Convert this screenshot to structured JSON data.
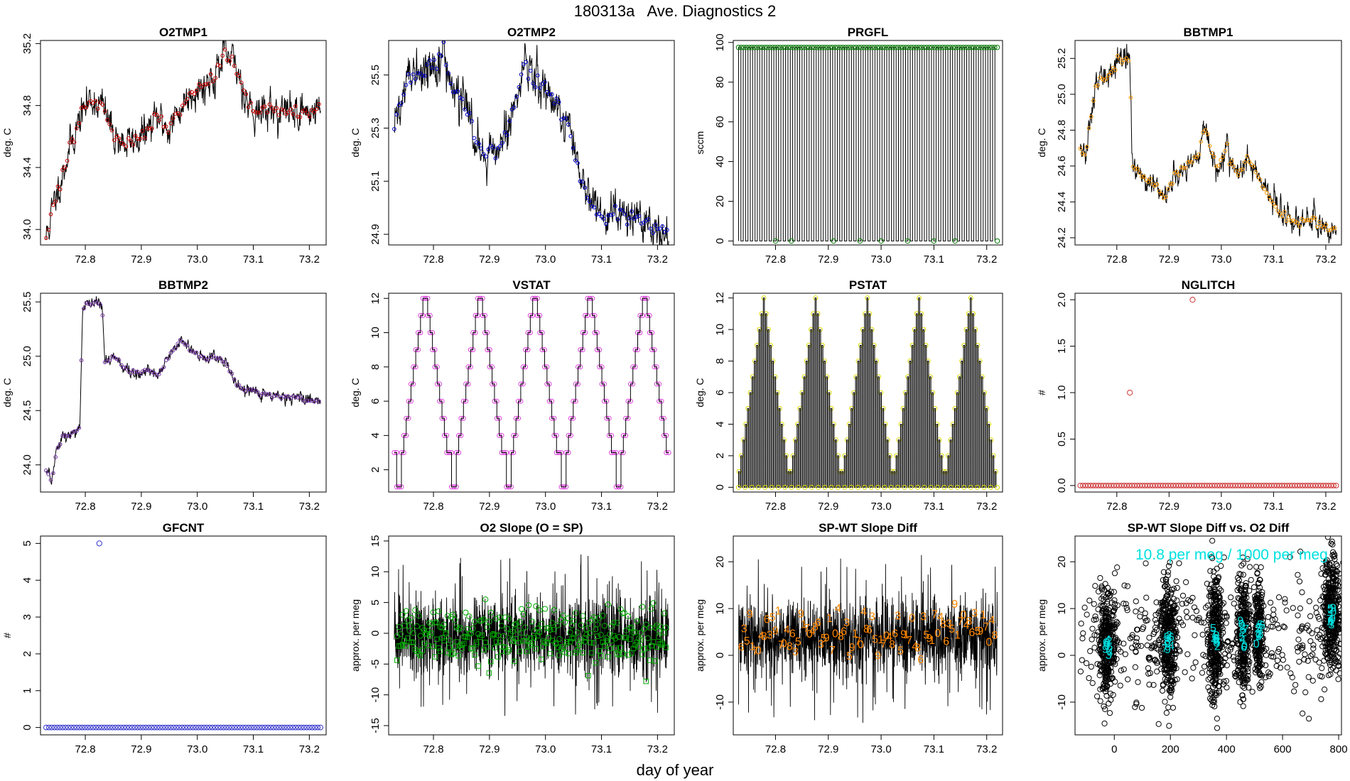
{
  "page": {
    "title": "180313a   Ave. Diagnostics 2",
    "footer_xlabel": "day of year"
  },
  "chart_data": [
    {
      "id": "o2tmp1",
      "type": "line",
      "title": "O2TMP1",
      "ylabel": "deg. C",
      "xlim": [
        72.72,
        73.23
      ],
      "ylim": [
        33.9,
        35.22
      ],
      "xticks": [
        72.8,
        72.9,
        73.0,
        73.1,
        73.2
      ],
      "xtick_labels": [
        "72.8",
        "72.9",
        "73.0",
        "73.1",
        "73.2"
      ],
      "yticks": [
        34.0,
        34.4,
        34.8,
        35.2
      ],
      "ytick_labels": [
        "34.0",
        "34.4",
        "34.8",
        "35.2"
      ],
      "line_color": "#000000",
      "marker": "circle",
      "marker_color": "#cc0000",
      "x": [
        72.73,
        72.75,
        72.77,
        72.79,
        72.81,
        72.83,
        72.85,
        72.87,
        72.89,
        72.91,
        72.93,
        72.95,
        72.97,
        72.99,
        73.01,
        73.03,
        73.05,
        73.07,
        73.09,
        73.11,
        73.13,
        73.15,
        73.17,
        73.19,
        73.21,
        73.22
      ],
      "values": [
        33.95,
        34.25,
        34.5,
        34.72,
        34.85,
        34.8,
        34.62,
        34.55,
        34.58,
        34.63,
        34.72,
        34.65,
        34.78,
        34.9,
        34.92,
        35.0,
        35.12,
        35.05,
        34.82,
        34.75,
        34.78,
        34.76,
        34.77,
        34.76,
        34.77,
        34.78
      ],
      "noise": 0.05,
      "seed": 11
    },
    {
      "id": "o2tmp2",
      "type": "line",
      "title": "O2TMP2",
      "ylabel": "deg. C",
      "xlim": [
        72.72,
        73.23
      ],
      "ylim": [
        24.86,
        25.63
      ],
      "xticks": [
        72.8,
        72.9,
        73.0,
        73.1,
        73.2
      ],
      "xtick_labels": [
        "72.8",
        "72.9",
        "73.0",
        "73.1",
        "73.2"
      ],
      "yticks": [
        24.9,
        25.1,
        25.3,
        25.5
      ],
      "ytick_labels": [
        "24.9",
        "25.1",
        "25.3",
        "25.5"
      ],
      "line_color": "#000000",
      "marker": "circle",
      "marker_color": "#0000cc",
      "x": [
        72.73,
        72.75,
        72.77,
        72.79,
        72.81,
        72.82,
        72.83,
        72.85,
        72.87,
        72.89,
        72.91,
        72.93,
        72.95,
        72.96,
        72.98,
        73.0,
        73.02,
        73.04,
        73.06,
        73.08,
        73.1,
        73.12,
        73.14,
        73.16,
        73.18,
        73.2,
        73.22
      ],
      "values": [
        25.3,
        25.45,
        25.5,
        25.53,
        25.56,
        25.57,
        25.47,
        25.4,
        25.3,
        25.22,
        25.2,
        25.3,
        25.42,
        25.55,
        25.48,
        25.45,
        25.4,
        25.3,
        25.12,
        25.0,
        24.97,
        24.96,
        24.97,
        24.96,
        24.95,
        24.93,
        24.92
      ],
      "noise": 0.035,
      "seed": 22
    },
    {
      "id": "prgfl",
      "type": "line",
      "title": "PRGFL",
      "ylabel": "sccm",
      "xlim": [
        72.72,
        73.23
      ],
      "ylim": [
        -2,
        101
      ],
      "xticks": [
        72.8,
        72.9,
        73.0,
        73.1,
        73.2
      ],
      "xtick_labels": [
        "72.8",
        "72.9",
        "73.0",
        "73.1",
        "73.2"
      ],
      "yticks": [
        0,
        20,
        40,
        60,
        80,
        100
      ],
      "ytick_labels": [
        "0",
        "20",
        "40",
        "60",
        "80",
        "100"
      ],
      "line_color": "#000000",
      "marker": "circle",
      "marker_color": "#007700",
      "pattern": {
        "x_start": 72.73,
        "x_end": 73.22,
        "cycles": 55,
        "high": 97.5,
        "low": 0
      }
    },
    {
      "id": "bbtmp1",
      "type": "line",
      "title": "BBTMP1",
      "ylabel": "deg. C",
      "xlim": [
        72.72,
        73.23
      ],
      "ylim": [
        24.16,
        25.3
      ],
      "xticks": [
        72.8,
        72.9,
        73.0,
        73.1,
        73.2
      ],
      "xtick_labels": [
        "72.8",
        "72.9",
        "73.0",
        "73.1",
        "73.2"
      ],
      "yticks": [
        24.2,
        24.4,
        24.6,
        24.8,
        25.0,
        25.2
      ],
      "ytick_labels": [
        "24.2",
        "24.4",
        "24.6",
        "24.8",
        "25.0",
        "25.2"
      ],
      "line_color": "#000000",
      "marker": "circle",
      "marker_color": "#ff9900",
      "x": [
        72.73,
        72.74,
        72.76,
        72.78,
        72.8,
        72.82,
        72.825,
        72.83,
        72.85,
        72.87,
        72.89,
        72.91,
        72.93,
        72.95,
        72.97,
        72.99,
        73.01,
        73.03,
        73.05,
        73.06,
        73.08,
        73.1,
        73.12,
        73.14,
        73.16,
        73.18,
        73.2,
        73.22
      ],
      "values": [
        24.7,
        24.65,
        25.05,
        25.1,
        25.18,
        25.2,
        25.15,
        24.6,
        24.55,
        24.5,
        24.42,
        24.55,
        24.6,
        24.65,
        24.8,
        24.6,
        24.7,
        24.55,
        24.65,
        24.6,
        24.48,
        24.38,
        24.32,
        24.3,
        24.3,
        24.28,
        24.26,
        24.24
      ],
      "noise": 0.03,
      "seed": 33
    },
    {
      "id": "bbtmp2",
      "type": "line",
      "title": "BBTMP2",
      "ylabel": "deg. C",
      "xlim": [
        72.72,
        73.23
      ],
      "ylim": [
        23.75,
        25.58
      ],
      "xticks": [
        72.8,
        72.9,
        73.0,
        73.1,
        73.2
      ],
      "xtick_labels": [
        "72.8",
        "72.9",
        "73.0",
        "73.1",
        "73.2"
      ],
      "yticks": [
        24.0,
        24.5,
        25.0,
        25.5
      ],
      "ytick_labels": [
        "24.0",
        "24.5",
        "25.0",
        "25.5"
      ],
      "line_color": "#000000",
      "marker": "circle",
      "marker_color": "#7030a0",
      "x": [
        72.73,
        72.74,
        72.75,
        72.76,
        72.78,
        72.79,
        72.795,
        72.8,
        72.82,
        72.83,
        72.835,
        72.85,
        72.87,
        72.89,
        72.91,
        72.93,
        72.95,
        72.97,
        72.99,
        73.01,
        73.03,
        73.05,
        73.07,
        73.09,
        73.11,
        73.13,
        73.15,
        73.17,
        73.19,
        73.21,
        73.22
      ],
      "values": [
        23.95,
        23.85,
        24.15,
        24.25,
        24.3,
        24.32,
        25.42,
        25.48,
        25.5,
        25.45,
        24.95,
        25.0,
        24.9,
        24.85,
        24.88,
        24.82,
        25.0,
        25.15,
        25.05,
        24.98,
        25.0,
        24.95,
        24.75,
        24.68,
        24.66,
        24.64,
        24.63,
        24.62,
        24.6,
        24.59,
        24.58
      ],
      "noise": 0.025,
      "seed": 44
    },
    {
      "id": "vstat",
      "type": "line",
      "title": "VSTAT",
      "ylabel": "deg. C",
      "xlim": [
        72.72,
        73.23
      ],
      "ylim": [
        0.7,
        12.3
      ],
      "xticks": [
        72.8,
        72.9,
        73.0,
        73.1,
        73.2
      ],
      "xtick_labels": [
        "72.8",
        "72.9",
        "73.0",
        "73.1",
        "73.2"
      ],
      "yticks": [
        2,
        4,
        6,
        8,
        10,
        12
      ],
      "ytick_labels": [
        "2",
        "4",
        "6",
        "8",
        "10",
        "12"
      ],
      "line_color": "#000000",
      "marker": "circle",
      "marker_color": "#dd44dd",
      "pattern": {
        "x_start": 72.73,
        "x_end": 73.22,
        "cycles": 5,
        "steps": [
          3,
          1,
          1,
          3,
          4,
          5,
          6,
          7,
          8,
          9,
          10,
          11,
          12,
          12,
          11,
          10,
          9,
          8,
          7,
          6,
          5,
          4,
          3
        ]
      }
    },
    {
      "id": "pstat",
      "type": "line",
      "title": "PSTAT",
      "ylabel": "deg. C",
      "xlim": [
        72.72,
        73.23
      ],
      "ylim": [
        -0.3,
        12.3
      ],
      "xticks": [
        72.8,
        72.9,
        73.0,
        73.1,
        73.2
      ],
      "xtick_labels": [
        "72.8",
        "72.9",
        "73.0",
        "73.1",
        "73.2"
      ],
      "yticks": [
        0,
        2,
        4,
        6,
        8,
        10,
        12
      ],
      "ytick_labels": [
        "0",
        "2",
        "4",
        "6",
        "8",
        "10",
        "12"
      ],
      "line_color": "#000000",
      "marker": "circle",
      "marker_color": "#dddd00",
      "pattern": {
        "x_start": 72.73,
        "x_end": 73.22,
        "cycles": 5,
        "steps": [
          1,
          2,
          3,
          4,
          5,
          6,
          7,
          8,
          9,
          10,
          11,
          12,
          11,
          10,
          9,
          8,
          7,
          6,
          5,
          4,
          3,
          2,
          1
        ],
        "alternate_zero": true
      }
    },
    {
      "id": "nglitch",
      "type": "scatter",
      "title": "NGLITCH",
      "ylabel": "#",
      "xlim": [
        72.72,
        73.23
      ],
      "ylim": [
        -0.07,
        2.07
      ],
      "xticks": [
        72.8,
        72.9,
        73.0,
        73.1,
        73.2
      ],
      "xtick_labels": [
        "72.8",
        "72.9",
        "73.0",
        "73.1",
        "73.2"
      ],
      "yticks": [
        0.0,
        0.5,
        1.0,
        1.5,
        2.0
      ],
      "ytick_labels": [
        "0.0",
        "0.5",
        "1.0",
        "1.5",
        "2.0"
      ],
      "marker": "circle",
      "marker_color": "#cc3333",
      "baseline": {
        "x_start": 72.73,
        "x_end": 73.22,
        "count": 100,
        "value": 0
      },
      "points": [
        {
          "x": 72.825,
          "y": 1
        },
        {
          "x": 72.945,
          "y": 2
        }
      ]
    },
    {
      "id": "gfcnt",
      "type": "scatter",
      "title": "GFCNT",
      "ylabel": "#",
      "xlim": [
        72.72,
        73.23
      ],
      "ylim": [
        -0.2,
        5.2
      ],
      "xticks": [
        72.8,
        72.9,
        73.0,
        73.1,
        73.2
      ],
      "xtick_labels": [
        "72.8",
        "72.9",
        "73.0",
        "73.1",
        "73.2"
      ],
      "yticks": [
        0,
        1,
        2,
        3,
        4,
        5
      ],
      "ytick_labels": [
        "0",
        "1",
        "2",
        "3",
        "4",
        "5"
      ],
      "marker": "circle",
      "marker_color": "#3333cc",
      "baseline": {
        "x_start": 72.73,
        "x_end": 73.22,
        "count": 100,
        "value": 0
      },
      "points": [
        {
          "x": 72.825,
          "y": 5
        }
      ]
    },
    {
      "id": "o2slope",
      "type": "line",
      "title": "O2 Slope (O = SP)",
      "ylabel": "approx. per meg",
      "xlim": [
        72.72,
        73.23
      ],
      "ylim": [
        -16.5,
        15.8
      ],
      "xticks": [
        72.8,
        72.9,
        73.0,
        73.1,
        73.2
      ],
      "xtick_labels": [
        "72.8",
        "72.9",
        "73.0",
        "73.1",
        "73.2"
      ],
      "yticks": [
        -15,
        -10,
        -5,
        0,
        5,
        10,
        15
      ],
      "ytick_labels": [
        "-15",
        "-10",
        "-5",
        "0",
        "5",
        "10",
        "15"
      ],
      "line_color": "#000000",
      "marker_color": "#00aa00",
      "noise_band": {
        "center": -0.5,
        "spread": 3,
        "spikes": 14,
        "count": 1400,
        "seed": 55
      },
      "series": [
        {
          "name": "O",
          "marker": "circle",
          "center": 1.2,
          "spread": 1.6,
          "count": 150,
          "seed": 56
        },
        {
          "name": "SP",
          "marker": "square",
          "center": -2.2,
          "spread": 1.4,
          "count": 150,
          "seed": 57
        }
      ]
    },
    {
      "id": "spwt",
      "type": "line",
      "title": "SP-WT Slope Diff",
      "ylabel": "approx. per meg",
      "xlim": [
        72.72,
        73.23
      ],
      "ylim": [
        -17,
        25.5
      ],
      "xticks": [
        72.8,
        72.9,
        73.0,
        73.1,
        73.2
      ],
      "xtick_labels": [
        "72.8",
        "72.9",
        "73.0",
        "73.1",
        "73.2"
      ],
      "yticks": [
        -10,
        0,
        10,
        20
      ],
      "ytick_labels": [
        "-10",
        "0",
        "10",
        "20"
      ],
      "line_color": "#000000",
      "label_color": "#ff8800",
      "noise_band": {
        "center": 3.5,
        "spread": 4,
        "spikes": 18,
        "count": 1400,
        "seed": 66
      },
      "digit_labels": [
        "6",
        "3",
        "5",
        "9",
        "1",
        "7",
        "0",
        "4",
        "8"
      ],
      "digit_count": 90,
      "digit_center": 4.5,
      "digit_spread": 2.6,
      "seed": 67
    },
    {
      "id": "spwt_vs_o2",
      "type": "scatter",
      "title": "SP-WT Slope Diff vs. O2 Diff",
      "ylabel": "approx. per meg",
      "xlim": [
        -140,
        810
      ],
      "ylim": [
        -17,
        25.5
      ],
      "xticks": [
        0,
        200,
        400,
        600,
        800
      ],
      "xtick_labels": [
        "0",
        "200",
        "400",
        "600",
        "800"
      ],
      "yticks": [
        -10,
        0,
        10,
        20
      ],
      "ytick_labels": [
        "-10",
        "0",
        "10",
        "20"
      ],
      "marker": "circle",
      "marker_color": "#000000",
      "label_color": "#00e0e0",
      "annotation": "10.8 per meg / 1000 per meg",
      "clusters": [
        {
          "x": -25,
          "xspread": 14,
          "y": 2,
          "yspread": 5.5,
          "n": 320
        },
        {
          "x": 190,
          "xspread": 14,
          "y": 3.5,
          "yspread": 6,
          "n": 320
        },
        {
          "x": 360,
          "xspread": 13,
          "y": 4,
          "yspread": 7,
          "n": 320
        },
        {
          "x": 460,
          "xspread": 12,
          "y": 4.5,
          "yspread": 6,
          "n": 300
        },
        {
          "x": 515,
          "xspread": 8,
          "y": 5,
          "yspread": 5,
          "n": 220
        },
        {
          "x": 775,
          "xspread": 16,
          "y": 9,
          "yspread": 6,
          "n": 360
        }
      ],
      "scatter_bg": {
        "count": 420,
        "yspread": 6.5,
        "ycenter": 4
      },
      "digit_labels": [
        "4",
        "0",
        "2",
        "3",
        "7",
        "5",
        "6",
        "9"
      ],
      "seed": 77
    }
  ]
}
